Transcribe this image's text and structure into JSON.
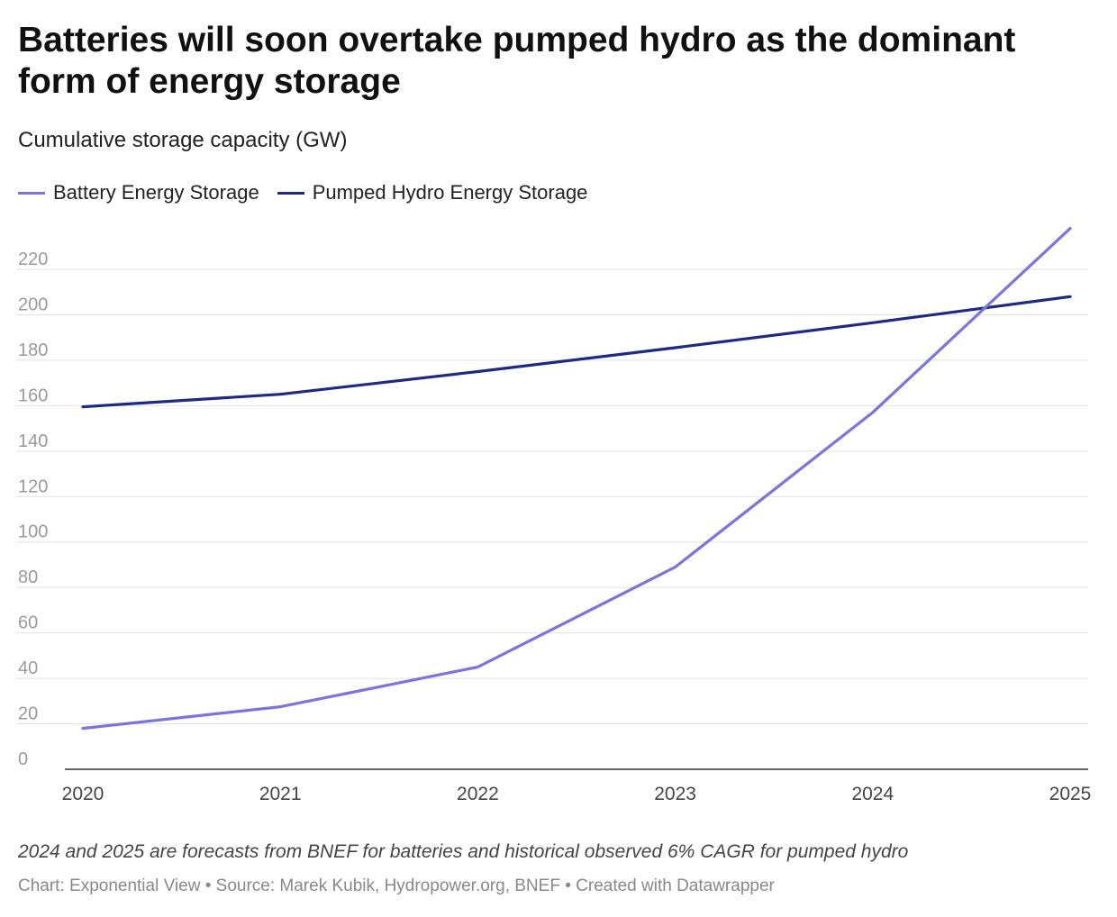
{
  "title": "Batteries will soon overtake pumped hydro as the dominant form of energy storage",
  "subtitle": "Cumulative storage capacity (GW)",
  "note": "2024 and 2025 are forecasts from BNEF for batteries and historical observed 6% CAGR for pumped hydro",
  "credits": {
    "chart": "Chart: Exponential View",
    "source": "Source: Marek Kubik, Hydropower.org, BNEF",
    "created": "Created with Datawrapper",
    "separator": " • "
  },
  "chart_data": {
    "type": "line",
    "title": "Batteries will soon overtake pumped hydro as the dominant form of energy storage",
    "ylabel": "Cumulative storage capacity (GW)",
    "xlabel": "",
    "x": [
      2020,
      2021,
      2022,
      2023,
      2024,
      2025
    ],
    "ylim": [
      0,
      240
    ],
    "yticks": [
      0,
      20,
      40,
      60,
      80,
      100,
      120,
      140,
      160,
      180,
      200,
      220
    ],
    "grid": true,
    "legend_position": "top-left",
    "series": [
      {
        "name": "Battery Energy Storage",
        "color": "#7b74dd",
        "values": [
          18,
          27.5,
          45,
          89,
          157,
          238
        ]
      },
      {
        "name": "Pumped Hydro Energy Storage",
        "color": "#1d2a84",
        "values": [
          159.5,
          165,
          175,
          185.5,
          196.5,
          208
        ]
      }
    ]
  }
}
